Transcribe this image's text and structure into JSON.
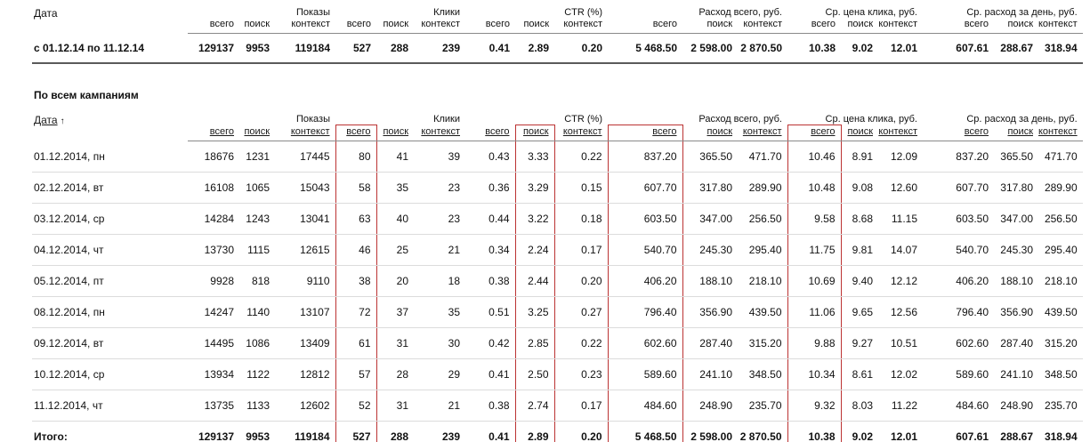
{
  "section_title": "По всем кампаниям",
  "highlights": {
    "color": "#bb3333",
    "columns": [
      3,
      7,
      9,
      12
    ],
    "column_meanings": [
      "клики всего",
      "CTR поиск",
      "расход всего",
      "ср. цена клика всего"
    ]
  },
  "summary_table": {
    "date_header": "Дата",
    "groups": [
      {
        "label": "Показы",
        "sub": [
          "всего",
          "поиск",
          "контекст"
        ]
      },
      {
        "label": "Клики",
        "sub": [
          "всего",
          "поиск",
          "контекст"
        ]
      },
      {
        "label": "CTR (%)",
        "sub": [
          "всего",
          "поиск",
          "контекст"
        ]
      },
      {
        "label": "Расход всего, руб.",
        "sub": [
          "всего",
          "поиск",
          "контекст"
        ]
      },
      {
        "label": "Ср. цена клика, руб.",
        "sub": [
          "всего",
          "поиск",
          "контекст"
        ]
      },
      {
        "label": "Ср. расход за день, руб.",
        "sub": [
          "всего",
          "поиск",
          "контекст"
        ]
      }
    ],
    "row": {
      "date": "с 01.12.14 по 11.12.14",
      "values": [
        "129137",
        "9953",
        "119184",
        "527",
        "288",
        "239",
        "0.41",
        "2.89",
        "0.20",
        "5 468.50",
        "2 598.00",
        "2 870.50",
        "10.38",
        "9.02",
        "12.01",
        "607.61",
        "288.67",
        "318.94"
      ]
    }
  },
  "detail_table": {
    "date_header": "Дата",
    "sort_arrow": "↑",
    "groups": [
      {
        "label": "Показы",
        "sub": [
          "всего",
          "поиск",
          "контекст"
        ]
      },
      {
        "label": "Клики",
        "sub": [
          "всего",
          "поиск",
          "контекст"
        ]
      },
      {
        "label": "CTR (%)",
        "sub": [
          "всего",
          "поиск",
          "контекст"
        ]
      },
      {
        "label": "Расход всего, руб.",
        "sub": [
          "всего",
          "поиск",
          "контекст"
        ]
      },
      {
        "label": "Ср. цена клика, руб.",
        "sub": [
          "всего",
          "поиск",
          "контекст"
        ]
      },
      {
        "label": "Ср. расход за день, руб.",
        "sub": [
          "всего",
          "поиск",
          "контекст"
        ]
      }
    ],
    "rows": [
      {
        "date": "01.12.2014, пн",
        "values": [
          "18676",
          "1231",
          "17445",
          "80",
          "41",
          "39",
          "0.43",
          "3.33",
          "0.22",
          "837.20",
          "365.50",
          "471.70",
          "10.46",
          "8.91",
          "12.09",
          "837.20",
          "365.50",
          "471.70"
        ]
      },
      {
        "date": "02.12.2014, вт",
        "values": [
          "16108",
          "1065",
          "15043",
          "58",
          "35",
          "23",
          "0.36",
          "3.29",
          "0.15",
          "607.70",
          "317.80",
          "289.90",
          "10.48",
          "9.08",
          "12.60",
          "607.70",
          "317.80",
          "289.90"
        ]
      },
      {
        "date": "03.12.2014, ср",
        "values": [
          "14284",
          "1243",
          "13041",
          "63",
          "40",
          "23",
          "0.44",
          "3.22",
          "0.18",
          "603.50",
          "347.00",
          "256.50",
          "9.58",
          "8.68",
          "11.15",
          "603.50",
          "347.00",
          "256.50"
        ]
      },
      {
        "date": "04.12.2014, чт",
        "values": [
          "13730",
          "1115",
          "12615",
          "46",
          "25",
          "21",
          "0.34",
          "2.24",
          "0.17",
          "540.70",
          "245.30",
          "295.40",
          "11.75",
          "9.81",
          "14.07",
          "540.70",
          "245.30",
          "295.40"
        ]
      },
      {
        "date": "05.12.2014, пт",
        "values": [
          "9928",
          "818",
          "9110",
          "38",
          "20",
          "18",
          "0.38",
          "2.44",
          "0.20",
          "406.20",
          "188.10",
          "218.10",
          "10.69",
          "9.40",
          "12.12",
          "406.20",
          "188.10",
          "218.10"
        ]
      },
      {
        "date": "08.12.2014, пн",
        "values": [
          "14247",
          "1140",
          "13107",
          "72",
          "37",
          "35",
          "0.51",
          "3.25",
          "0.27",
          "796.40",
          "356.90",
          "439.50",
          "11.06",
          "9.65",
          "12.56",
          "796.40",
          "356.90",
          "439.50"
        ]
      },
      {
        "date": "09.12.2014, вт",
        "values": [
          "14495",
          "1086",
          "13409",
          "61",
          "31",
          "30",
          "0.42",
          "2.85",
          "0.22",
          "602.60",
          "287.40",
          "315.20",
          "9.88",
          "9.27",
          "10.51",
          "602.60",
          "287.40",
          "315.20"
        ]
      },
      {
        "date": "10.12.2014, ср",
        "values": [
          "13934",
          "1122",
          "12812",
          "57",
          "28",
          "29",
          "0.41",
          "2.50",
          "0.23",
          "589.60",
          "241.10",
          "348.50",
          "10.34",
          "8.61",
          "12.02",
          "589.60",
          "241.10",
          "348.50"
        ]
      },
      {
        "date": "11.12.2014, чт",
        "values": [
          "13735",
          "1133",
          "12602",
          "52",
          "31",
          "21",
          "0.38",
          "2.74",
          "0.17",
          "484.60",
          "248.90",
          "235.70",
          "9.32",
          "8.03",
          "11.22",
          "484.60",
          "248.90",
          "235.70"
        ]
      }
    ],
    "total": {
      "label": "Итого:",
      "values": [
        "129137",
        "9953",
        "119184",
        "527",
        "288",
        "239",
        "0.41",
        "2.89",
        "0.20",
        "5 468.50",
        "2 598.00",
        "2 870.50",
        "10.38",
        "9.02",
        "12.01",
        "607.61",
        "288.67",
        "318.94"
      ]
    }
  }
}
